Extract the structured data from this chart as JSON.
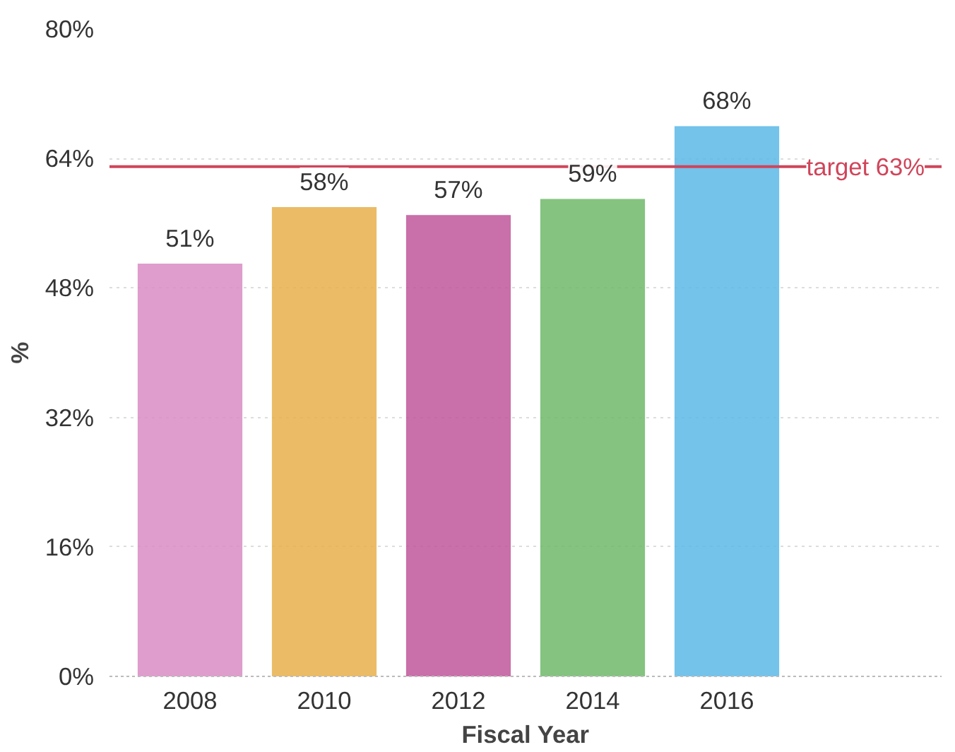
{
  "chart_data": {
    "type": "bar",
    "xlabel": "Fiscal Year",
    "ylabel": "%",
    "categories": [
      "2008",
      "2010",
      "2012",
      "2014",
      "2016"
    ],
    "values": [
      51,
      58,
      57,
      59,
      68
    ],
    "value_labels": [
      "51%",
      "58%",
      "57%",
      "59%",
      "68%"
    ],
    "colors": [
      "#d98cc4",
      "#e8b04a",
      "#c0569a",
      "#6fb86a",
      "#5bb8e8"
    ],
    "ylim": [
      0,
      80
    ],
    "yticks": [
      {
        "value": 0,
        "label": "0%"
      },
      {
        "value": 16,
        "label": "16%"
      },
      {
        "value": 32,
        "label": "32%"
      },
      {
        "value": 48,
        "label": "48%"
      },
      {
        "value": 64,
        "label": "64%"
      },
      {
        "value": 80,
        "label": "80%"
      }
    ],
    "grid": "y",
    "ref_lines": [
      {
        "axis": "y",
        "value": 63,
        "label": "target 63%",
        "color": "#d0455a"
      }
    ]
  }
}
